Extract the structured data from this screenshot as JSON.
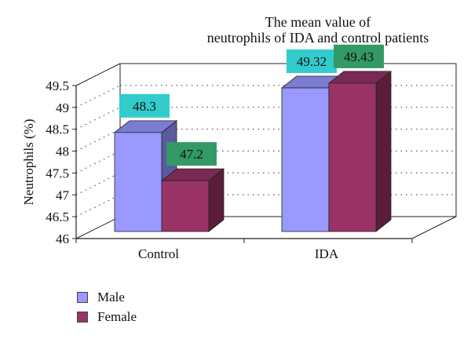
{
  "chart_data": {
    "type": "bar",
    "title": [
      "The mean value of",
      "neutrophils of IDA and control patients"
    ],
    "ylabel": "Neutrophils (%)",
    "xlabel": "",
    "ylim": [
      46,
      49.5
    ],
    "yticks": [
      "46",
      "46.5",
      "47",
      "47.5",
      "48",
      "48.5",
      "49",
      "49.5"
    ],
    "categories": [
      "Control",
      "IDA"
    ],
    "series": [
      {
        "name": "Male",
        "values": [
          48.3,
          49.32
        ],
        "labels": [
          "48.3",
          "49.32"
        ]
      },
      {
        "name": "Female",
        "values": [
          47.2,
          49.43
        ],
        "labels": [
          "47.2",
          "49.43"
        ]
      }
    ],
    "grid": true,
    "legend": "bottom-left"
  },
  "colors": {
    "male_front": "#9999ff",
    "male_side": "#5a5a9e",
    "male_top": "#7c7cd2",
    "female_front": "#993366",
    "female_side": "#5a1d3a",
    "female_top": "#7a2a52",
    "male_label_bg": "#33cccc",
    "female_label_bg": "#339966"
  }
}
